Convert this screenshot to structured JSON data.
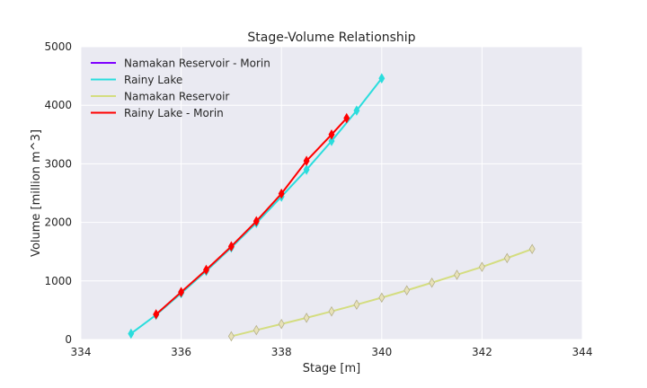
{
  "chart_data": {
    "type": "line",
    "title": "Stage-Volume Relationship",
    "xlabel": "Stage [m]",
    "ylabel": "Volume [million m^3]",
    "xlim": [
      334,
      344
    ],
    "ylim": [
      0,
      5000
    ],
    "xticks": [
      "334",
      "336",
      "338",
      "340",
      "342",
      "344"
    ],
    "yticks": [
      "0",
      "1000",
      "2000",
      "3000",
      "4000",
      "5000"
    ],
    "grid": true,
    "legend_position": "top-left",
    "series": [
      {
        "name": "Namakan Reservoir - Morin",
        "color": "#7f00ff",
        "marker": "diamond",
        "x": [],
        "y": []
      },
      {
        "name": "Rainy Lake",
        "color": "#2adddd",
        "marker": "diamond",
        "x": [
          335.0,
          335.5,
          336.0,
          336.5,
          337.0,
          337.5,
          338.0,
          338.5,
          339.0,
          339.5,
          340.0
        ],
        "y": [
          100,
          420,
          790,
          1170,
          1570,
          1990,
          2440,
          2900,
          3390,
          3910,
          4460
        ]
      },
      {
        "name": "Namakan Reservoir",
        "color": "#d4dd80",
        "marker": "diamond",
        "x": [
          337.0,
          337.5,
          338.0,
          338.5,
          339.0,
          339.5,
          340.0,
          340.5,
          341.0,
          341.5,
          342.0,
          342.5,
          343.0
        ],
        "y": [
          55,
          160,
          265,
          370,
          480,
          595,
          715,
          840,
          970,
          1105,
          1240,
          1390,
          1545
        ]
      },
      {
        "name": "Rainy Lake - Morin",
        "color": "#ff0000",
        "marker": "diamond",
        "x": [
          335.5,
          336.0,
          336.5,
          337.0,
          337.5,
          338.0,
          338.5,
          339.0,
          339.3
        ],
        "y": [
          430,
          810,
          1190,
          1590,
          2020,
          2490,
          3050,
          3500,
          3780
        ]
      }
    ]
  }
}
